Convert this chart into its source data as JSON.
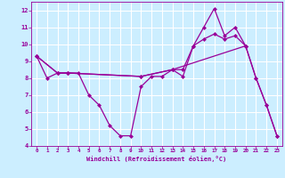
{
  "xlabel": "Windchill (Refroidissement éolien,°C)",
  "bg_color": "#cceeff",
  "grid_color": "#ffffff",
  "line_color": "#990099",
  "xlim": [
    -0.5,
    23.5
  ],
  "ylim": [
    4,
    12.5
  ],
  "xticks": [
    0,
    1,
    2,
    3,
    4,
    5,
    6,
    7,
    8,
    9,
    10,
    11,
    12,
    13,
    14,
    15,
    16,
    17,
    18,
    19,
    20,
    21,
    22,
    23
  ],
  "yticks": [
    4,
    5,
    6,
    7,
    8,
    9,
    10,
    11,
    12
  ],
  "line1_x": [
    0,
    1,
    2,
    3,
    4,
    5,
    6,
    7,
    8,
    9,
    10,
    11,
    12,
    13,
    14,
    15,
    16,
    17,
    18,
    19,
    20,
    21,
    22,
    23
  ],
  "line1_y": [
    9.3,
    8.0,
    8.3,
    8.3,
    8.3,
    7.0,
    6.4,
    5.2,
    4.6,
    4.6,
    7.5,
    8.1,
    8.1,
    8.5,
    8.1,
    9.9,
    11.0,
    12.1,
    10.5,
    11.0,
    9.9,
    8.0,
    6.4,
    4.6
  ],
  "line2_x": [
    0,
    2,
    3,
    10,
    13,
    14,
    15,
    16,
    17,
    18,
    19,
    20
  ],
  "line2_y": [
    9.3,
    8.3,
    8.3,
    8.1,
    8.5,
    8.5,
    9.9,
    10.3,
    10.6,
    10.3,
    10.5,
    9.9
  ],
  "line3_x": [
    0,
    2,
    3,
    10,
    13,
    20,
    21,
    22,
    23
  ],
  "line3_y": [
    9.3,
    8.3,
    8.3,
    8.1,
    8.5,
    9.9,
    8.0,
    6.4,
    4.6
  ]
}
